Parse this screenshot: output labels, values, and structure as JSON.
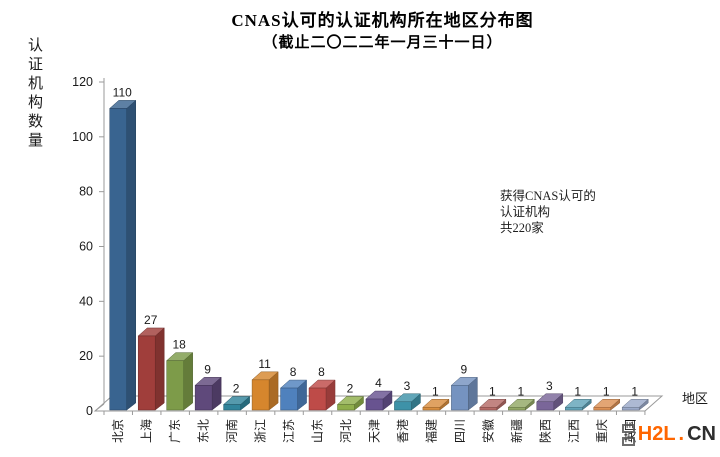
{
  "title": "CNAS认可的认证机构所在地区分布图",
  "subtitle": "（截止二〇二二年一月三十一日）",
  "annotation": {
    "lines": [
      "获得CNAS认可的",
      "认证机构",
      "共220家"
    ]
  },
  "logo": {
    "primary": "H2L",
    "dot": ".",
    "secondary": "CN",
    "primary_color": "#ff6600",
    "secondary_color": "#2e2e2e"
  },
  "chart_data": {
    "type": "bar",
    "style": "3d",
    "title": "CNAS认可的认证机构所在地区分布图",
    "subtitle": "（截止二〇二二年一月三十一日）",
    "xlabel": "地区",
    "ylabel": "认证机构数量",
    "ylim": [
      0,
      120
    ],
    "yticks": [
      0,
      20,
      40,
      60,
      80,
      100,
      120
    ],
    "grid": false,
    "legend": false,
    "total_note": "共220家",
    "categories": [
      "北京",
      "上海",
      "广东",
      "东北",
      "河南",
      "浙江",
      "江苏",
      "山东",
      "河北",
      "天津",
      "香港",
      "福建",
      "四川",
      "安徽",
      "新疆",
      "陕西",
      "江西",
      "重庆",
      "英国"
    ],
    "values": [
      110,
      27,
      18,
      9,
      2,
      11,
      8,
      8,
      2,
      4,
      3,
      1,
      9,
      1,
      1,
      3,
      1,
      1,
      1
    ],
    "bar_colors": [
      "#396490",
      "#a03e3b",
      "#7d9b49",
      "#5f497b",
      "#31849b",
      "#d6862d",
      "#4f81bd",
      "#be4b48",
      "#8fae4b",
      "#685390",
      "#3e92a8",
      "#d98e3f",
      "#7593c0",
      "#b56a66",
      "#93a965",
      "#7a6699",
      "#62a3b8",
      "#dd9155",
      "#9baac9"
    ],
    "axis_color": "#9a9a9a"
  }
}
